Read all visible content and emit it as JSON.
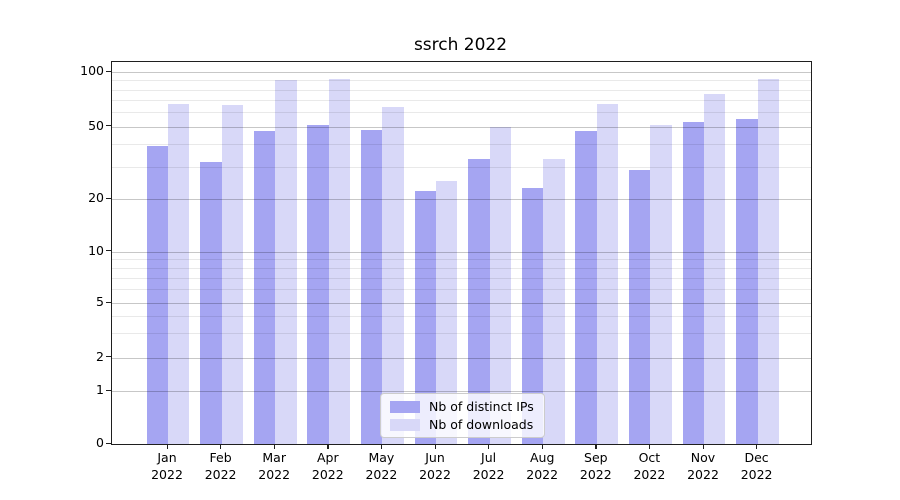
{
  "chart_data": {
    "type": "bar",
    "title": "ssrch 2022",
    "categories": [
      "Jan",
      "Feb",
      "Mar",
      "Apr",
      "May",
      "Jun",
      "Jul",
      "Aug",
      "Sep",
      "Oct",
      "Nov",
      "Dec"
    ],
    "year_label": "2022",
    "series": [
      {
        "name": "Nb of distinct IPs",
        "color": "#a5a5f2",
        "values": [
          39,
          32,
          47,
          51,
          48,
          22,
          33,
          23,
          47,
          29,
          53,
          55
        ]
      },
      {
        "name": "Nb of downloads",
        "color": "#d8d8f8",
        "values": [
          67,
          66,
          90,
          91,
          64,
          25,
          50,
          33,
          67,
          51,
          76,
          91
        ]
      }
    ],
    "yscale": "symlog",
    "ylim": [
      0,
      110
    ],
    "y_ticks": [
      0,
      1,
      2,
      5,
      10,
      20,
      50,
      100
    ],
    "y_minor_ticks": [
      3,
      4,
      6,
      7,
      8,
      9,
      30,
      40,
      60,
      70,
      80,
      90
    ],
    "xlabel": "",
    "ylabel": "",
    "grid": true,
    "legend_position": "lower center"
  },
  "colors": {
    "major_grid": "rgba(0,0,0,0.22)",
    "minor_grid": "rgba(0,0,0,0.085)",
    "spine": "#1f1f1f",
    "text": "#000000"
  }
}
